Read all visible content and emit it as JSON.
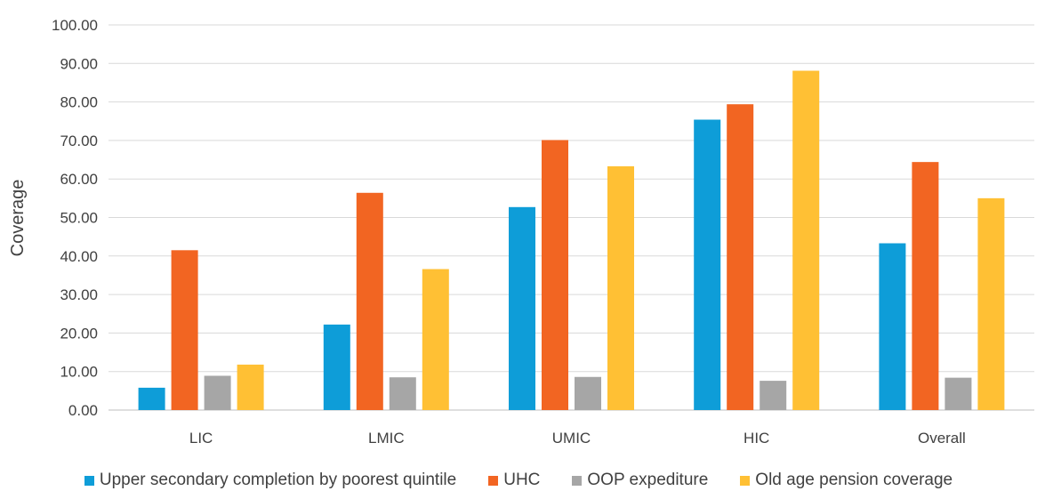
{
  "chart_data": {
    "type": "bar",
    "title": "",
    "xlabel": "",
    "ylabel": "Coverage",
    "ylim": [
      0,
      100
    ],
    "yticks": [
      "0.00",
      "10.00",
      "20.00",
      "30.00",
      "40.00",
      "50.00",
      "60.00",
      "70.00",
      "80.00",
      "90.00",
      "100.00"
    ],
    "categories": [
      "LIC",
      "LMIC",
      "UMIC",
      "HIC",
      "Overall"
    ],
    "grid": true,
    "legend_position": "bottom",
    "series": [
      {
        "name": "Upper secondary completion by poorest quintile",
        "color": "#0E9DD8",
        "values": [
          5.8,
          22.2,
          52.7,
          75.4,
          43.3
        ]
      },
      {
        "name": "UHC",
        "color": "#F26522",
        "values": [
          41.5,
          56.4,
          70.1,
          79.4,
          64.4
        ]
      },
      {
        "name": "OOP expediture",
        "color": "#A6A6A6",
        "values": [
          8.9,
          8.5,
          8.6,
          7.6,
          8.4
        ]
      },
      {
        "name": "Old age pension coverage",
        "color": "#FFC034",
        "values": [
          11.8,
          36.6,
          63.3,
          88.1,
          55.0
        ]
      }
    ]
  }
}
